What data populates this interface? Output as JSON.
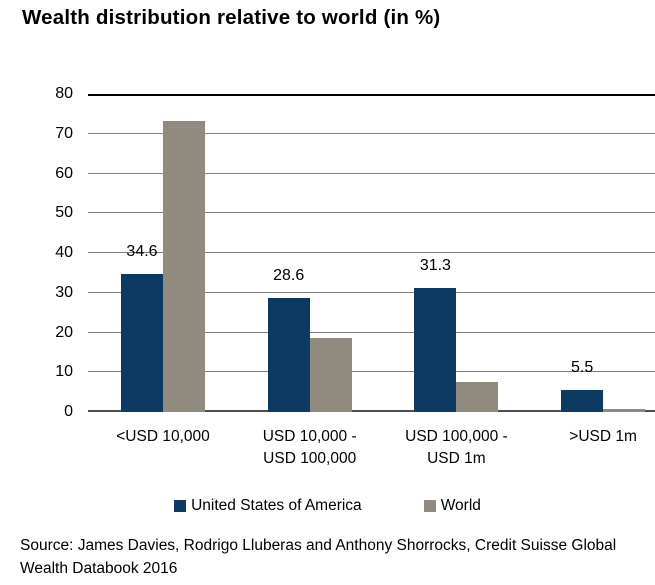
{
  "chart_title": "Wealth distribution relative to world (in %)",
  "source": {
    "line1": "Source: James Davies, Rodrigo Lluberas and Anthony Shorrocks, Credit Suisse Global",
    "line2": "Wealth Databook 2016"
  },
  "colors": {
    "us_bar": "#0c3a63",
    "world_bar": "#918a7f",
    "gridline": "#7f7f7f",
    "top_rule": "#000000",
    "baseline": "#4d4d4d"
  },
  "category_lines": [
    [
      "<USD 10,000"
    ],
    [
      "USD 10,000 -",
      "USD 100,000"
    ],
    [
      "USD 100,000 -",
      "USD 1m"
    ],
    [
      ">USD 1m"
    ]
  ],
  "chart_data": {
    "type": "bar",
    "title": "Wealth distribution relative to world (in %)",
    "categories": [
      "<USD 10,000",
      "USD 10,000 - USD 100,000",
      "USD 100,000 - USD 1m",
      ">USD 1m"
    ],
    "series": [
      {
        "name": "United States of America",
        "color": "#0c3a63",
        "values": [
          34.6,
          28.6,
          31.3,
          5.5
        ],
        "data_labels": [
          "34.6",
          "28.6",
          "31.3",
          "5.5"
        ]
      },
      {
        "name": "World",
        "color": "#918a7f",
        "values": [
          73.2,
          18.5,
          7.5,
          0.7
        ],
        "data_labels": []
      }
    ],
    "xlabel": "",
    "ylabel": "",
    "ylim": [
      0,
      80
    ],
    "ytick_step": 10,
    "yticks": [
      0,
      10,
      20,
      30,
      40,
      50,
      60,
      70,
      80
    ],
    "grid": true,
    "legend_position": "bottom"
  }
}
